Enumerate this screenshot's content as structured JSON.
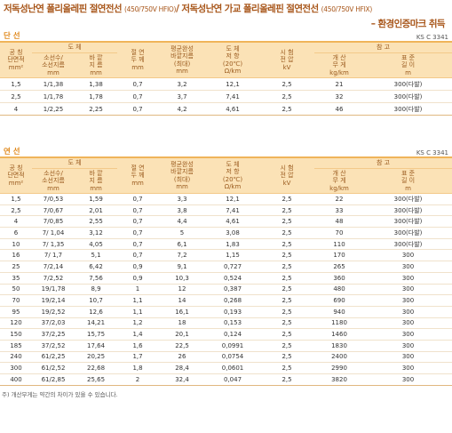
{
  "title": {
    "line1_a": "저독성난연 폴리올레핀 절연전선",
    "line1_a_spec": "(450/750V HFIO)",
    "separator": "/",
    "line1_b": "저독성난연 가교 폴리올레핀 절연전선",
    "line1_b_spec": "(450/750V HFIX)",
    "line2": "– 환경인증마크 취득"
  },
  "header": {
    "col1": [
      "공 칭",
      "단면적",
      "mm²"
    ],
    "group1": "도 체",
    "col2": [
      "소선수/",
      "소선지름",
      "mm"
    ],
    "col3": [
      "바 깥",
      "지 름",
      "mm"
    ],
    "col4": [
      "절 연",
      "두 께",
      "mm"
    ],
    "col5": [
      "평균완성",
      "바깥지름",
      "(최대)",
      "mm"
    ],
    "col6": [
      "도 체",
      "저 항",
      "(20℃)",
      "Ω/km"
    ],
    "col7": [
      "시 험",
      "전 압",
      "kV"
    ],
    "group2": "참 고",
    "col8": [
      "개 산",
      "무 게",
      "kg/km"
    ],
    "col9": [
      "표 준",
      "길 이",
      "m"
    ]
  },
  "sections": [
    {
      "label": "단 선",
      "standard": "KS C 3341",
      "rows": [
        [
          "1,5",
          "1/1,38",
          "1,38",
          "0,7",
          "3,2",
          "12,1",
          "2,5",
          "21",
          "300(다발)"
        ],
        [
          "2,5",
          "1/1,78",
          "1,78",
          "0,7",
          "3,7",
          "7,41",
          "2,5",
          "32",
          "300(다발)"
        ],
        [
          "4",
          "1/2,25",
          "2,25",
          "0,7",
          "4,2",
          "4,61",
          "2,5",
          "46",
          "300(다발)"
        ]
      ]
    },
    {
      "label": "연 선",
      "standard": "KS C 3341",
      "rows": [
        [
          "1,5",
          "7/0,53",
          "1,59",
          "0,7",
          "3,3",
          "12,1",
          "2,5",
          "22",
          "300(다발)"
        ],
        [
          "2,5",
          "7/0,67",
          "2,01",
          "0,7",
          "3,8",
          "7,41",
          "2,5",
          "33",
          "300(다발)"
        ],
        [
          "4",
          "7/0,85",
          "2,55",
          "0,7",
          "4,4",
          "4,61",
          "2,5",
          "48",
          "300(다발)"
        ],
        [
          "6",
          "7/ 1,04",
          "3,12",
          "0,7",
          "5",
          "3,08",
          "2,5",
          "70",
          "300(다발)"
        ],
        [
          "10",
          "7/ 1,35",
          "4,05",
          "0,7",
          "6,1",
          "1,83",
          "2,5",
          "110",
          "300(다발)"
        ],
        [
          "16",
          "7/ 1,7",
          "5,1",
          "0,7",
          "7,2",
          "1,15",
          "2,5",
          "170",
          "300"
        ],
        [
          "25",
          "7/2,14",
          "6,42",
          "0,9",
          "9,1",
          "0,727",
          "2,5",
          "265",
          "300"
        ],
        [
          "35",
          "7/2,52",
          "7,56",
          "0,9",
          "10,3",
          "0,524",
          "2,5",
          "360",
          "300"
        ],
        [
          "50",
          "19/1,78",
          "8,9",
          "1",
          "12",
          "0,387",
          "2,5",
          "480",
          "300"
        ],
        [
          "70",
          "19/2,14",
          "10,7",
          "1,1",
          "14",
          "0,268",
          "2,5",
          "690",
          "300"
        ],
        [
          "95",
          "19/2,52",
          "12,6",
          "1,1",
          "16,1",
          "0,193",
          "2,5",
          "940",
          "300"
        ],
        [
          "120",
          "37/2,03",
          "14,21",
          "1,2",
          "18",
          "0,153",
          "2,5",
          "1180",
          "300"
        ],
        [
          "150",
          "37/2,25",
          "15,75",
          "1,4",
          "20,1",
          "0,124",
          "2,5",
          "1460",
          "300"
        ],
        [
          "185",
          "37/2,52",
          "17,64",
          "1,6",
          "22,5",
          "0,0991",
          "2,5",
          "1830",
          "300"
        ],
        [
          "240",
          "61/2,25",
          "20,25",
          "1,7",
          "26",
          "0,0754",
          "2,5",
          "2400",
          "300"
        ],
        [
          "300",
          "61/2,52",
          "22,68",
          "1,8",
          "28,4",
          "0,0601",
          "2,5",
          "2990",
          "300"
        ],
        [
          "400",
          "61/2,85",
          "25,65",
          "2",
          "32,4",
          "0,047",
          "2,5",
          "3820",
          "300"
        ]
      ]
    }
  ],
  "footnote": "주) 개산무게는 약간의 차이가 있을 수 있습니다."
}
